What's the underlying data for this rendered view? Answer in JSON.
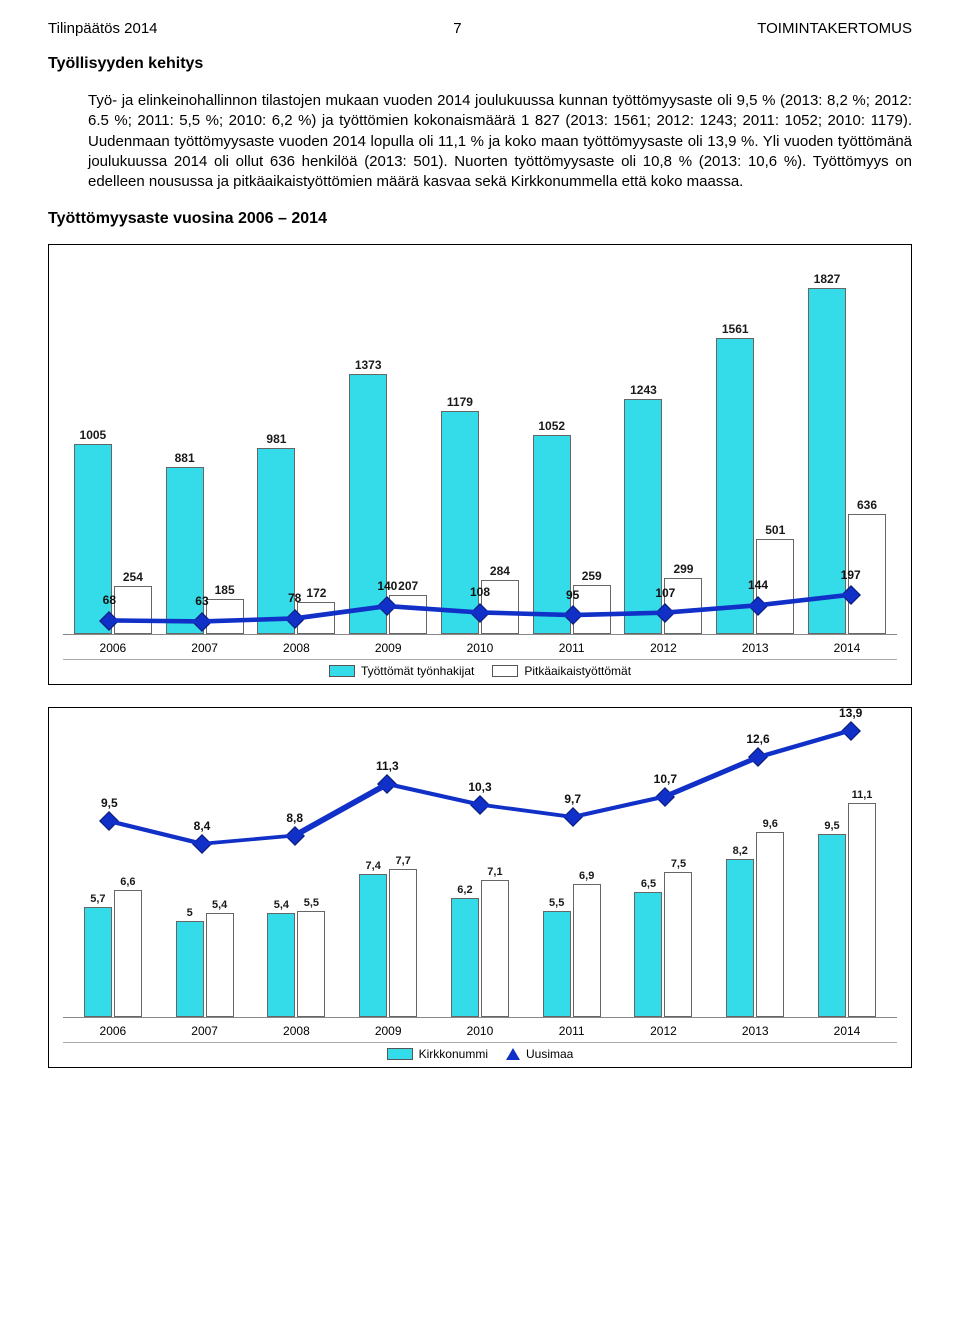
{
  "header": {
    "left": "Tilinpäätös 2014",
    "page": "7",
    "right": "TOIMINTAKERTOMUS"
  },
  "section_title": "Työllisyyden kehitys",
  "body_text": "Työ- ja elinkeinohallinnon tilastojen mukaan vuoden 2014 joulukuussa kunnan työttömyysaste oli 9,5 % (2013: 8,2 %; 2012: 6.5 %; 2011: 5,5 %; 2010: 6,2 %) ja työttömien kokonaismäärä 1 827 (2013: 1561; 2012: 1243; 2011: 1052; 2010: 1179). Uudenmaan työttömyysaste vuoden 2014 lopulla oli 11,1 % ja koko maan työttömyysaste oli 13,9 %. Yli vuoden työttömänä joulukuussa 2014 oli ollut 636 henkilöä (2013: 501). Nuorten työttömyysaste oli 10,8 % (2013: 10,6 %). Työttömyys on edelleen nousussa ja pitkäaikaistyöttömien määrä kasvaa sekä Kirkkonummella että koko maassa.",
  "chart_title": "Työttömyysaste vuosina 2006 – 2014",
  "chart1": {
    "type": "bar_line_combo",
    "years": [
      "2006",
      "2007",
      "2008",
      "2009",
      "2010",
      "2011",
      "2012",
      "2013",
      "2014"
    ],
    "series_a": {
      "label": "Työttömät työnhakijat",
      "color": "#33dce8",
      "values": [
        1005,
        881,
        981,
        1373,
        1179,
        1052,
        1243,
        1561,
        1827
      ]
    },
    "series_b": {
      "label": "Pitkäaikaistyöttömät",
      "color": "#ffffff",
      "values": [
        254,
        185,
        172,
        207,
        284,
        259,
        299,
        501,
        636
      ]
    },
    "line": {
      "values": [
        68,
        63,
        78,
        140,
        108,
        95,
        107,
        144,
        197
      ],
      "color": "#1030c8"
    },
    "y_max": 1900,
    "background": "#ffffff"
  },
  "chart2": {
    "type": "bar_line_combo",
    "years": [
      "2006",
      "2007",
      "2008",
      "2009",
      "2010",
      "2011",
      "2012",
      "2013",
      "2014"
    ],
    "kirkkonummi": {
      "label": "Kirkkonummi",
      "color": "#33dce8",
      "a": [
        5.7,
        5.0,
        5.4,
        7.4,
        6.2,
        5.5,
        6.5,
        8.2,
        9.5
      ],
      "b": [
        6.6,
        5.4,
        5.5,
        7.7,
        7.1,
        6.9,
        7.5,
        9.6,
        11.1
      ]
    },
    "line": {
      "label": "Uusimaa",
      "color": "#1030c8",
      "values": [
        9.5,
        8.4,
        8.8,
        11.3,
        10.3,
        9.7,
        10.7,
        12.6,
        13.9
      ]
    },
    "y_max": 14.5,
    "background": "#ffffff"
  },
  "legend2": {
    "a": "Kirkkonummi",
    "b": "Uusimaa"
  }
}
